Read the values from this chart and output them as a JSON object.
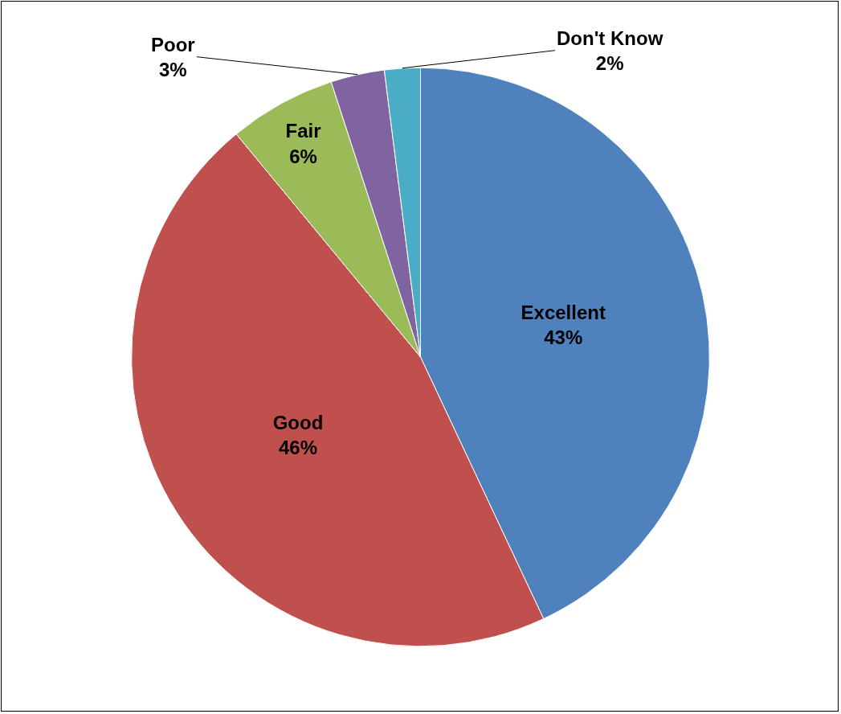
{
  "chart_data": {
    "type": "pie",
    "categories": [
      "Excellent",
      "Good",
      "Fair",
      "Poor",
      "Don't Know"
    ],
    "values": [
      43,
      46,
      6,
      3,
      2
    ],
    "value_labels": [
      "43%",
      "46%",
      "6%",
      "3%",
      "2%"
    ],
    "colors": [
      "#4f81bd",
      "#c0504d",
      "#9bbb59",
      "#8064a2",
      "#4bacc6"
    ],
    "legend": false
  }
}
